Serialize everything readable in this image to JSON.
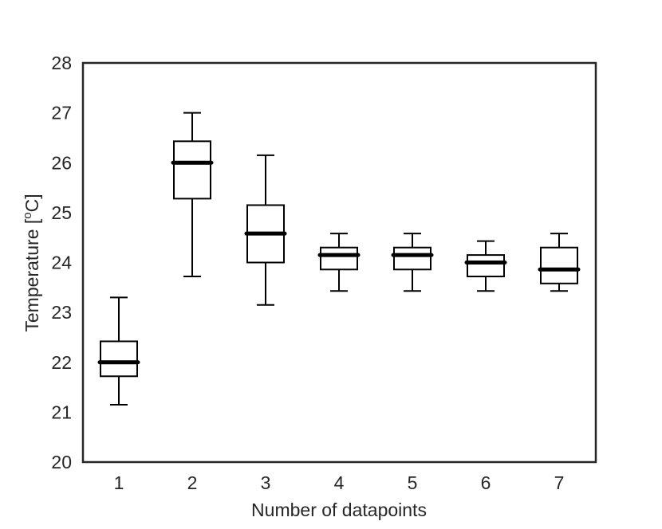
{
  "chart_data": {
    "type": "box",
    "title": "",
    "xlabel": "Number of datapoints",
    "ylabel_prefix": "Temperature [",
    "ylabel_sup": "o",
    "ylabel_suffix": "C]",
    "ylim": [
      20,
      28
    ],
    "yticks": [
      20,
      21,
      22,
      23,
      24,
      25,
      26,
      27,
      28
    ],
    "categories": [
      "1",
      "2",
      "3",
      "4",
      "5",
      "6",
      "7"
    ],
    "boxes": [
      {
        "category": "1",
        "whisker_low": 21.15,
        "q1": 21.72,
        "median": 22.0,
        "q3": 22.42,
        "whisker_high": 23.3
      },
      {
        "category": "2",
        "whisker_low": 23.72,
        "q1": 25.28,
        "median": 26.0,
        "q3": 26.43,
        "whisker_high": 27.0
      },
      {
        "category": "3",
        "whisker_low": 23.15,
        "q1": 24.0,
        "median": 24.58,
        "q3": 25.15,
        "whisker_high": 26.15
      },
      {
        "category": "4",
        "whisker_low": 23.43,
        "q1": 23.86,
        "median": 24.15,
        "q3": 24.3,
        "whisker_high": 24.58
      },
      {
        "category": "5",
        "whisker_low": 23.43,
        "q1": 23.86,
        "median": 24.15,
        "q3": 24.3,
        "whisker_high": 24.58
      },
      {
        "category": "6",
        "whisker_low": 23.43,
        "q1": 23.72,
        "median": 24.0,
        "q3": 24.15,
        "whisker_high": 24.43
      },
      {
        "category": "7",
        "whisker_low": 23.43,
        "q1": 23.58,
        "median": 23.86,
        "q3": 24.3,
        "whisker_high": 24.58
      }
    ],
    "grid": false,
    "colors": {
      "box": "#000000",
      "median": "#000000",
      "text": "#262626",
      "frame": "#262626"
    }
  }
}
